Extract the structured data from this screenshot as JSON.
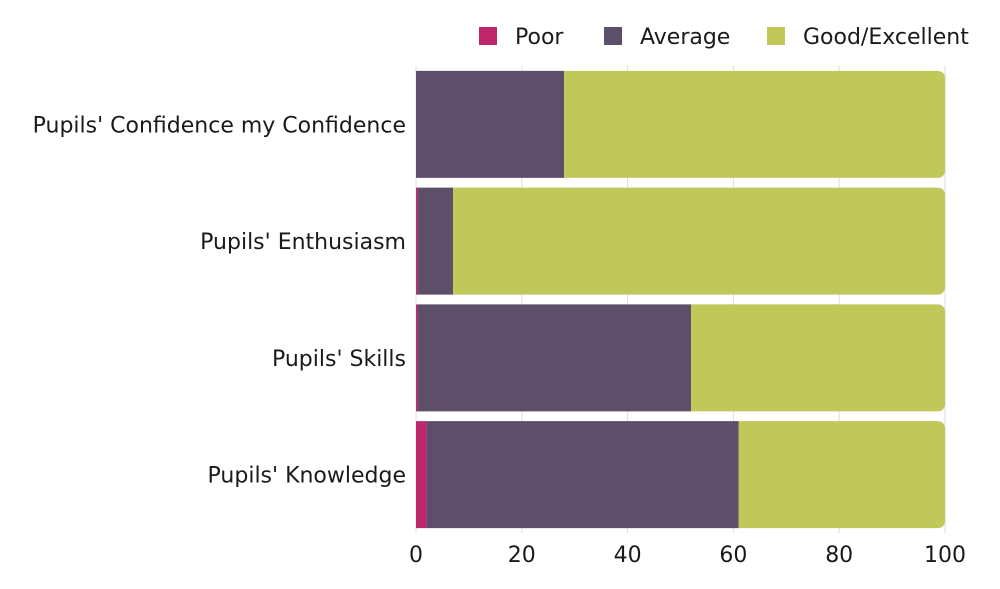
{
  "chart_data": {
    "type": "bar",
    "orientation": "horizontal",
    "stacked": true,
    "categories": [
      "Pupils' Confidence my Confidence",
      "Pupils' Enthusiasm",
      "Pupils' Skills",
      "Pupils' Knowledge"
    ],
    "series": [
      {
        "name": "Poor",
        "color": "#c0276a",
        "values": [
          0,
          0.3,
          0.3,
          2
        ]
      },
      {
        "name": "Average",
        "color": "#5d4e69",
        "values": [
          28,
          6.7,
          51.7,
          59
        ]
      },
      {
        "name": "Good/Excellent",
        "color": "#c0c85a",
        "values": [
          72,
          93,
          48,
          39
        ]
      }
    ],
    "xlim": [
      0,
      100
    ],
    "xticks": [
      "0",
      "20",
      "40",
      "60",
      "80",
      "100"
    ],
    "grid": true,
    "legend": "top-right"
  }
}
